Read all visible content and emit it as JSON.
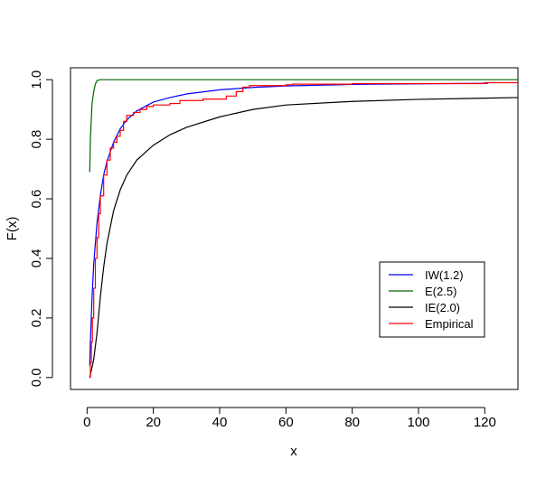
{
  "chart_data": {
    "type": "line",
    "title": "",
    "xlabel": "x",
    "ylabel": "F(x)",
    "xlim": [
      -5,
      130
    ],
    "ylim": [
      -0.04,
      1.04
    ],
    "x_ticks": [
      0,
      20,
      40,
      60,
      80,
      100,
      120
    ],
    "y_ticks": [
      0.0,
      0.2,
      0.4,
      0.6,
      0.8,
      1.0
    ],
    "x_tick_labels": [
      "0",
      "20",
      "40",
      "60",
      "80",
      "100",
      "120"
    ],
    "y_tick_labels": [
      "0.0",
      "0.2",
      "0.4",
      "0.6",
      "0.8",
      "1.0"
    ],
    "grid": false,
    "legend_position": "bottom-right",
    "series": [
      {
        "name": "IW(1.2)",
        "color": "#0000ff",
        "style": "line",
        "points": [
          [
            0.8,
            0.04
          ],
          [
            1,
            0.12
          ],
          [
            1.5,
            0.27
          ],
          [
            2,
            0.38
          ],
          [
            3,
            0.52
          ],
          [
            4,
            0.61
          ],
          [
            5,
            0.68
          ],
          [
            6,
            0.725
          ],
          [
            8,
            0.79
          ],
          [
            10,
            0.835
          ],
          [
            12,
            0.865
          ],
          [
            15,
            0.895
          ],
          [
            20,
            0.925
          ],
          [
            25,
            0.94
          ],
          [
            30,
            0.952
          ],
          [
            40,
            0.966
          ],
          [
            50,
            0.974
          ],
          [
            60,
            0.979
          ],
          [
            80,
            0.984
          ],
          [
            100,
            0.986
          ],
          [
            121,
            0.988
          ]
        ]
      },
      {
        "name": "E(2.5)",
        "color": "#006400",
        "style": "line",
        "points": [
          [
            0.8,
            0.69
          ],
          [
            1,
            0.8
          ],
          [
            1.5,
            0.92
          ],
          [
            2,
            0.96
          ],
          [
            2.5,
            0.985
          ],
          [
            3,
            0.997
          ],
          [
            4,
            1.0
          ],
          [
            10,
            1.0
          ],
          [
            130,
            1.0
          ]
        ]
      },
      {
        "name": "IE(2.0)",
        "color": "#000000",
        "style": "line",
        "points": [
          [
            0.8,
            0.0
          ],
          [
            2,
            0.06
          ],
          [
            3,
            0.15
          ],
          [
            4,
            0.27
          ],
          [
            5,
            0.37
          ],
          [
            6,
            0.45
          ],
          [
            8,
            0.56
          ],
          [
            10,
            0.63
          ],
          [
            12,
            0.68
          ],
          [
            15,
            0.73
          ],
          [
            20,
            0.78
          ],
          [
            25,
            0.815
          ],
          [
            30,
            0.84
          ],
          [
            40,
            0.875
          ],
          [
            50,
            0.9
          ],
          [
            60,
            0.915
          ],
          [
            80,
            0.927
          ],
          [
            100,
            0.934
          ],
          [
            120,
            0.938
          ],
          [
            130,
            0.94
          ]
        ]
      },
      {
        "name": "Empirical",
        "color": "#ff0000",
        "style": "step",
        "points": [
          [
            0.8,
            0.0
          ],
          [
            1,
            0.05
          ],
          [
            1.3,
            0.12
          ],
          [
            1.6,
            0.2
          ],
          [
            2,
            0.3
          ],
          [
            2.5,
            0.4
          ],
          [
            3,
            0.47
          ],
          [
            3.5,
            0.55
          ],
          [
            4,
            0.61
          ],
          [
            5,
            0.68
          ],
          [
            6,
            0.73
          ],
          [
            7,
            0.77
          ],
          [
            8,
            0.79
          ],
          [
            9,
            0.81
          ],
          [
            10,
            0.83
          ],
          [
            11,
            0.86
          ],
          [
            12,
            0.88
          ],
          [
            14,
            0.89
          ],
          [
            16,
            0.9
          ],
          [
            18,
            0.91
          ],
          [
            20,
            0.915
          ],
          [
            25,
            0.92
          ],
          [
            28,
            0.93
          ],
          [
            35,
            0.935
          ],
          [
            42,
            0.945
          ],
          [
            45,
            0.96
          ],
          [
            47,
            0.975
          ],
          [
            49,
            0.98
          ],
          [
            60,
            0.983
          ],
          [
            62,
            0.985
          ],
          [
            80,
            0.987
          ],
          [
            120,
            0.99
          ],
          [
            130,
            0.99
          ]
        ]
      }
    ]
  }
}
